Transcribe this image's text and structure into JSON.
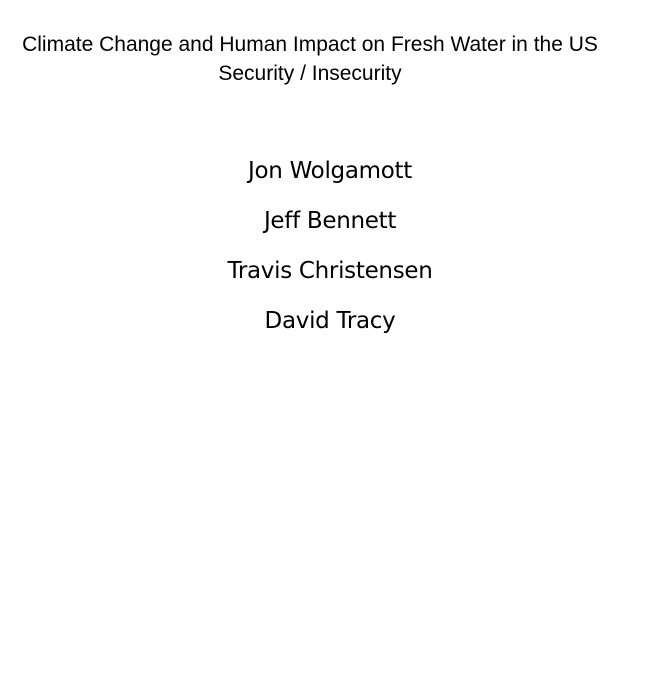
{
  "document": {
    "title_line_1": "Climate Change and Human Impact on Fresh Water in the US",
    "title_line_2": "Security / Insecurity",
    "authors": [
      "Jon Wolgamott",
      "Jeff Bennett",
      "Travis Christensen",
      "David Tracy"
    ]
  }
}
